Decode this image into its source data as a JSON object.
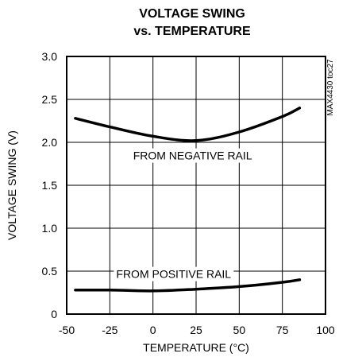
{
  "chart_data": {
    "type": "line",
    "title_lines": [
      "VOLTAGE SWING",
      "vs. TEMPERATURE"
    ],
    "xlabel": "TEMPERATURE (°C)",
    "ylabel": "VOLTAGE SWING (V)",
    "xlim": [
      -50,
      100
    ],
    "ylim": [
      0,
      3.0
    ],
    "x_ticks": [
      -50,
      -25,
      0,
      25,
      50,
      75,
      100
    ],
    "x_tick_labels": [
      "-50",
      "-25",
      "0",
      "25",
      "50",
      "75",
      "100"
    ],
    "y_ticks": [
      0,
      0.5,
      1.0,
      1.5,
      2.0,
      2.5,
      3.0
    ],
    "y_tick_labels": [
      "0",
      "0.5",
      "1.0",
      "1.5",
      "2.0",
      "2.5",
      "3.0"
    ],
    "grid": true,
    "side_id": "MAX4430 toc27",
    "series": [
      {
        "name": "FROM NEGATIVE RAIL",
        "x": [
          -45,
          -25,
          0,
          25,
          50,
          75,
          85
        ],
        "y": [
          2.28,
          2.18,
          2.07,
          2.02,
          2.12,
          2.3,
          2.4
        ]
      },
      {
        "name": "FROM POSITIVE RAIL",
        "x": [
          -45,
          -25,
          0,
          25,
          50,
          75,
          85
        ],
        "y": [
          0.28,
          0.28,
          0.27,
          0.29,
          0.32,
          0.37,
          0.4
        ]
      }
    ],
    "annotations": [
      {
        "text": "FROM NEGATIVE RAIL",
        "x": 23,
        "y": 1.8
      },
      {
        "text": "FROM POSITIVE RAIL",
        "x": 12,
        "y": 0.42
      }
    ]
  }
}
